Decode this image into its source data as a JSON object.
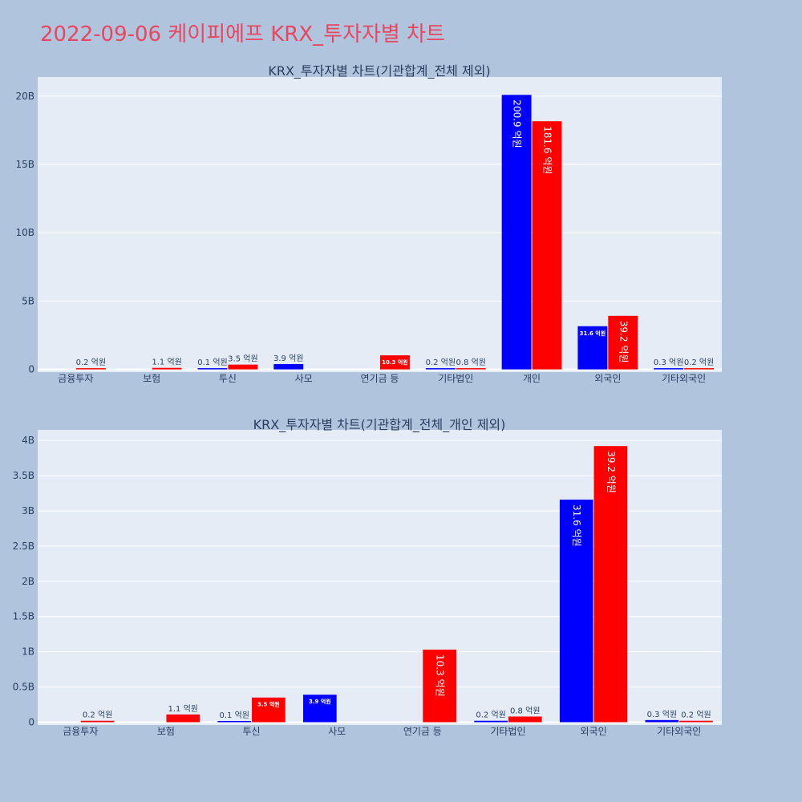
{
  "page": {
    "title": "2022-09-06 케이피에프 KRX_투자자별 차트"
  },
  "colors": {
    "buy": "#0000ff",
    "sell": "#ff0000",
    "plot_bg": "#e5ecf6",
    "page_bg": "#b0c4de",
    "title": "#e8475f",
    "text": "#2a3f5f"
  },
  "chart_data": [
    {
      "type": "bar",
      "title": "KRX_투자자별 차트(기관합계_전체 제외)",
      "categories": [
        "금융투자",
        "보험",
        "투신",
        "사모",
        "연기금 등",
        "기타법인",
        "개인",
        "외국인",
        "기타외국인"
      ],
      "series": [
        {
          "color": "#0000ff",
          "values": [
            0,
            0,
            10000000,
            390000000,
            0,
            20000000,
            20090000000,
            3160000000,
            30000000
          ],
          "labels": [
            "",
            "",
            "0.1 억원",
            "3.9 억원",
            "",
            "0.2 억원",
            "200.9 억원",
            "31.6 억원",
            "0.3 억원"
          ]
        },
        {
          "color": "#ff0000",
          "values": [
            20000000,
            110000000,
            350000000,
            0,
            1030000000,
            80000000,
            18160000000,
            3920000000,
            20000000
          ],
          "labels": [
            "0.2 억원",
            "1.1 억원",
            "3.5 억원",
            "",
            "10.3 억원",
            "0.8 억원",
            "181.6 억원",
            "39.2 억원",
            "0.2 억원"
          ]
        }
      ],
      "yticks": [
        0,
        5000000000,
        10000000000,
        15000000000,
        20000000000
      ],
      "ytick_labels": [
        "0",
        "5B",
        "10B",
        "15B",
        "20B"
      ],
      "ylim": [
        -200000000,
        21400000000
      ],
      "grid": true,
      "legend": "none"
    },
    {
      "type": "bar",
      "title": "KRX_투자자별 차트(기관합계_전체_개인 제외)",
      "categories": [
        "금융투자",
        "보험",
        "투신",
        "사모",
        "연기금 등",
        "기타법인",
        "외국인",
        "기타외국인"
      ],
      "series": [
        {
          "color": "#0000ff",
          "values": [
            0,
            0,
            10000000,
            390000000,
            0,
            20000000,
            3160000000,
            30000000
          ],
          "labels": [
            "",
            "",
            "0.1 억원",
            "3.9 억원",
            "",
            "0.2 억원",
            "31.6 억원",
            "0.3 억원"
          ]
        },
        {
          "color": "#ff0000",
          "values": [
            20000000,
            110000000,
            350000000,
            0,
            1030000000,
            80000000,
            3920000000,
            20000000
          ],
          "labels": [
            "0.2 억원",
            "1.1 억원",
            "3.5 억원",
            "",
            "10.3 억원",
            "0.8 억원",
            "39.2 억원",
            "0.2 억원"
          ]
        }
      ],
      "yticks": [
        0,
        500000000,
        1000000000,
        1500000000,
        2000000000,
        2500000000,
        3000000000,
        3500000000,
        4000000000
      ],
      "ytick_labels": [
        "0",
        "0.5B",
        "1B",
        "1.5B",
        "2B",
        "2.5B",
        "3B",
        "3.5B",
        "4B"
      ],
      "ylim": [
        -40000000,
        4150000000
      ],
      "grid": true,
      "legend": "none"
    }
  ]
}
